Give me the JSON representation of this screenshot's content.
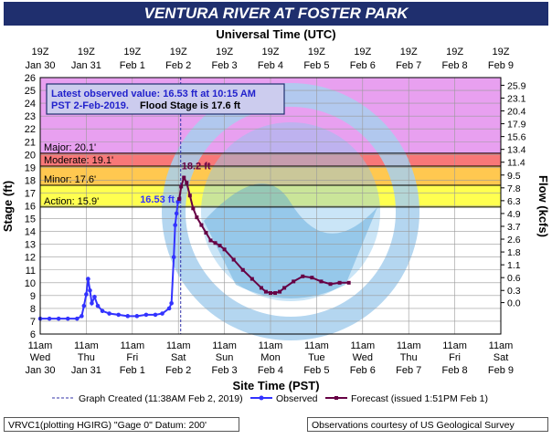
{
  "header": {
    "title": "VENTURA RIVER AT FOSTER PARK",
    "top_axis_title": "Universal Time (UTC)"
  },
  "info_box": {
    "line1": "Latest observed value: 16.53 ft at 10:15 AM",
    "line2a": "PST 2-Feb-2019.",
    "line2b": "Flood Stage is 17.6 ft"
  },
  "footer": {
    "left": "VRVC1(plotting HGIRG) \"Gage 0\" Datum: 200'",
    "right": "Observations courtesy of US Geological Survey"
  },
  "legend": {
    "graph_created": "Graph Created (11:38AM Feb 2, 2019)",
    "observed": "Observed",
    "forecast": "Forecast (issued 1:51PM Feb 1)"
  },
  "colors": {
    "title_bg": "#1f2f6e",
    "major": "#e8a0f0",
    "moderate": "#f87878",
    "minor": "#ffc850",
    "action": "#ffff50",
    "observed": "#3333ff",
    "forecast": "#660044",
    "watermark": "#a8d0ee"
  },
  "chart_data": {
    "type": "line",
    "title": "VENTURA RIVER AT FOSTER PARK",
    "xlabel": "Site Time (PST)",
    "x2label": "Universal Time (UTC)",
    "ylabel": "Stage (ft)",
    "y2label": "Flow (kcfs)",
    "ylim": [
      6,
      26
    ],
    "y_ticks": [
      6,
      7,
      8,
      9,
      10,
      11,
      12,
      13,
      14,
      15,
      16,
      17,
      18,
      19,
      20,
      21,
      22,
      23,
      24,
      25,
      26
    ],
    "xlim": [
      0,
      10
    ],
    "x_ticks_bottom": [
      {
        "x": 0,
        "l1": "11am",
        "l2": "Wed",
        "l3": "Jan 30"
      },
      {
        "x": 1,
        "l1": "11am",
        "l2": "Thu",
        "l3": "Jan 31"
      },
      {
        "x": 2,
        "l1": "11am",
        "l2": "Fri",
        "l3": "Feb 1"
      },
      {
        "x": 3,
        "l1": "11am",
        "l2": "Sat",
        "l3": "Feb 2"
      },
      {
        "x": 4,
        "l1": "11am",
        "l2": "Sun",
        "l3": "Feb 3"
      },
      {
        "x": 5,
        "l1": "11am",
        "l2": "Mon",
        "l3": "Feb 4"
      },
      {
        "x": 6,
        "l1": "11am",
        "l2": "Tue",
        "l3": "Feb 5"
      },
      {
        "x": 7,
        "l1": "11am",
        "l2": "Wed",
        "l3": "Feb 6"
      },
      {
        "x": 8,
        "l1": "11am",
        "l2": "Thu",
        "l3": "Feb 7"
      },
      {
        "x": 9,
        "l1": "11am",
        "l2": "Fri",
        "l3": "Feb 8"
      },
      {
        "x": 10,
        "l1": "11am",
        "l2": "Sat",
        "l3": "Feb 9"
      }
    ],
    "x_ticks_top": [
      {
        "x": 0,
        "l1": "19Z",
        "l2": "Jan 30"
      },
      {
        "x": 1,
        "l1": "19Z",
        "l2": "Jan 31"
      },
      {
        "x": 2,
        "l1": "19Z",
        "l2": "Feb 1"
      },
      {
        "x": 3,
        "l1": "19Z",
        "l2": "Feb 2"
      },
      {
        "x": 4,
        "l1": "19Z",
        "l2": "Feb 3"
      },
      {
        "x": 5,
        "l1": "19Z",
        "l2": "Feb 4"
      },
      {
        "x": 6,
        "l1": "19Z",
        "l2": "Feb 5"
      },
      {
        "x": 7,
        "l1": "19Z",
        "l2": "Feb 6"
      },
      {
        "x": 8,
        "l1": "19Z",
        "l2": "Feb 7"
      },
      {
        "x": 9,
        "l1": "19Z",
        "l2": "Feb 8"
      },
      {
        "x": 10,
        "l1": "19Z",
        "l2": "Feb 9"
      }
    ],
    "flow_ticks": [
      {
        "stage": 8.45,
        "label": "0.0"
      },
      {
        "stage": 9.4,
        "label": "0.3"
      },
      {
        "stage": 10.4,
        "label": "0.6"
      },
      {
        "stage": 11.4,
        "label": "1.1"
      },
      {
        "stage": 12.4,
        "label": "1.8"
      },
      {
        "stage": 13.4,
        "label": "2.6"
      },
      {
        "stage": 14.4,
        "label": "3.7"
      },
      {
        "stage": 15.4,
        "label": "4.9"
      },
      {
        "stage": 16.4,
        "label": "6.3"
      },
      {
        "stage": 17.4,
        "label": "7.8"
      },
      {
        "stage": 18.4,
        "label": "9.5"
      },
      {
        "stage": 19.4,
        "label": "11.4"
      },
      {
        "stage": 20.4,
        "label": "13.4"
      },
      {
        "stage": 21.4,
        "label": "15.6"
      },
      {
        "stage": 22.4,
        "label": "17.9"
      },
      {
        "stage": 23.4,
        "label": "20.4"
      },
      {
        "stage": 24.4,
        "label": "23.1"
      },
      {
        "stage": 25.4,
        "label": "25.9"
      }
    ],
    "flood_categories": [
      {
        "name": "Major",
        "label": "Major: 20.1'",
        "from": 20.1,
        "to": 26,
        "color": "#e8a0f0"
      },
      {
        "name": "Moderate",
        "label": "Moderate: 19.1'",
        "from": 19.1,
        "to": 20.1,
        "color": "#f87878"
      },
      {
        "name": "Minor",
        "label": "Minor: 17.6'",
        "from": 17.6,
        "to": 19.1,
        "color": "#ffc850"
      },
      {
        "name": "Action",
        "label": "Action: 15.9'",
        "from": 15.9,
        "to": 17.6,
        "color": "#ffff50"
      }
    ],
    "graph_created_x": 3.05,
    "annotations": [
      {
        "text": "16.53 ft",
        "x": 3.0,
        "y": 16.53,
        "series": "observed"
      },
      {
        "text": "18.2 ft",
        "x": 3.15,
        "y": 18.2,
        "series": "forecast"
      }
    ],
    "series": [
      {
        "name": "Observed",
        "x": [
          0,
          0.2,
          0.4,
          0.6,
          0.8,
          0.9,
          0.95,
          1.0,
          1.04,
          1.08,
          1.12,
          1.18,
          1.25,
          1.35,
          1.5,
          1.7,
          1.9,
          2.1,
          2.3,
          2.5,
          2.65,
          2.8,
          2.85,
          2.9,
          2.93,
          2.96,
          2.99,
          3.02
        ],
        "y": [
          7.2,
          7.2,
          7.2,
          7.2,
          7.2,
          7.4,
          8.2,
          9.1,
          10.3,
          9.4,
          8.4,
          8.9,
          8.2,
          7.8,
          7.6,
          7.5,
          7.4,
          7.4,
          7.5,
          7.5,
          7.6,
          8.0,
          8.4,
          12.0,
          14.5,
          15.4,
          16.3,
          16.53
        ]
      },
      {
        "name": "Forecast",
        "x": [
          3.02,
          3.06,
          3.12,
          3.18,
          3.25,
          3.32,
          3.4,
          3.5,
          3.6,
          3.7,
          3.8,
          3.9,
          4.0,
          4.2,
          4.4,
          4.6,
          4.8,
          4.9,
          5.0,
          5.1,
          5.2,
          5.3,
          5.5,
          5.7,
          5.9,
          6.1,
          6.3,
          6.5,
          6.7
        ],
        "y": [
          16.53,
          17.5,
          18.2,
          17.8,
          16.8,
          15.8,
          15.1,
          14.5,
          13.9,
          13.3,
          13.1,
          12.9,
          12.6,
          11.8,
          11.0,
          10.3,
          9.6,
          9.3,
          9.2,
          9.2,
          9.3,
          9.6,
          10.1,
          10.5,
          10.4,
          10.1,
          9.9,
          10.0,
          10.0
        ]
      }
    ]
  }
}
